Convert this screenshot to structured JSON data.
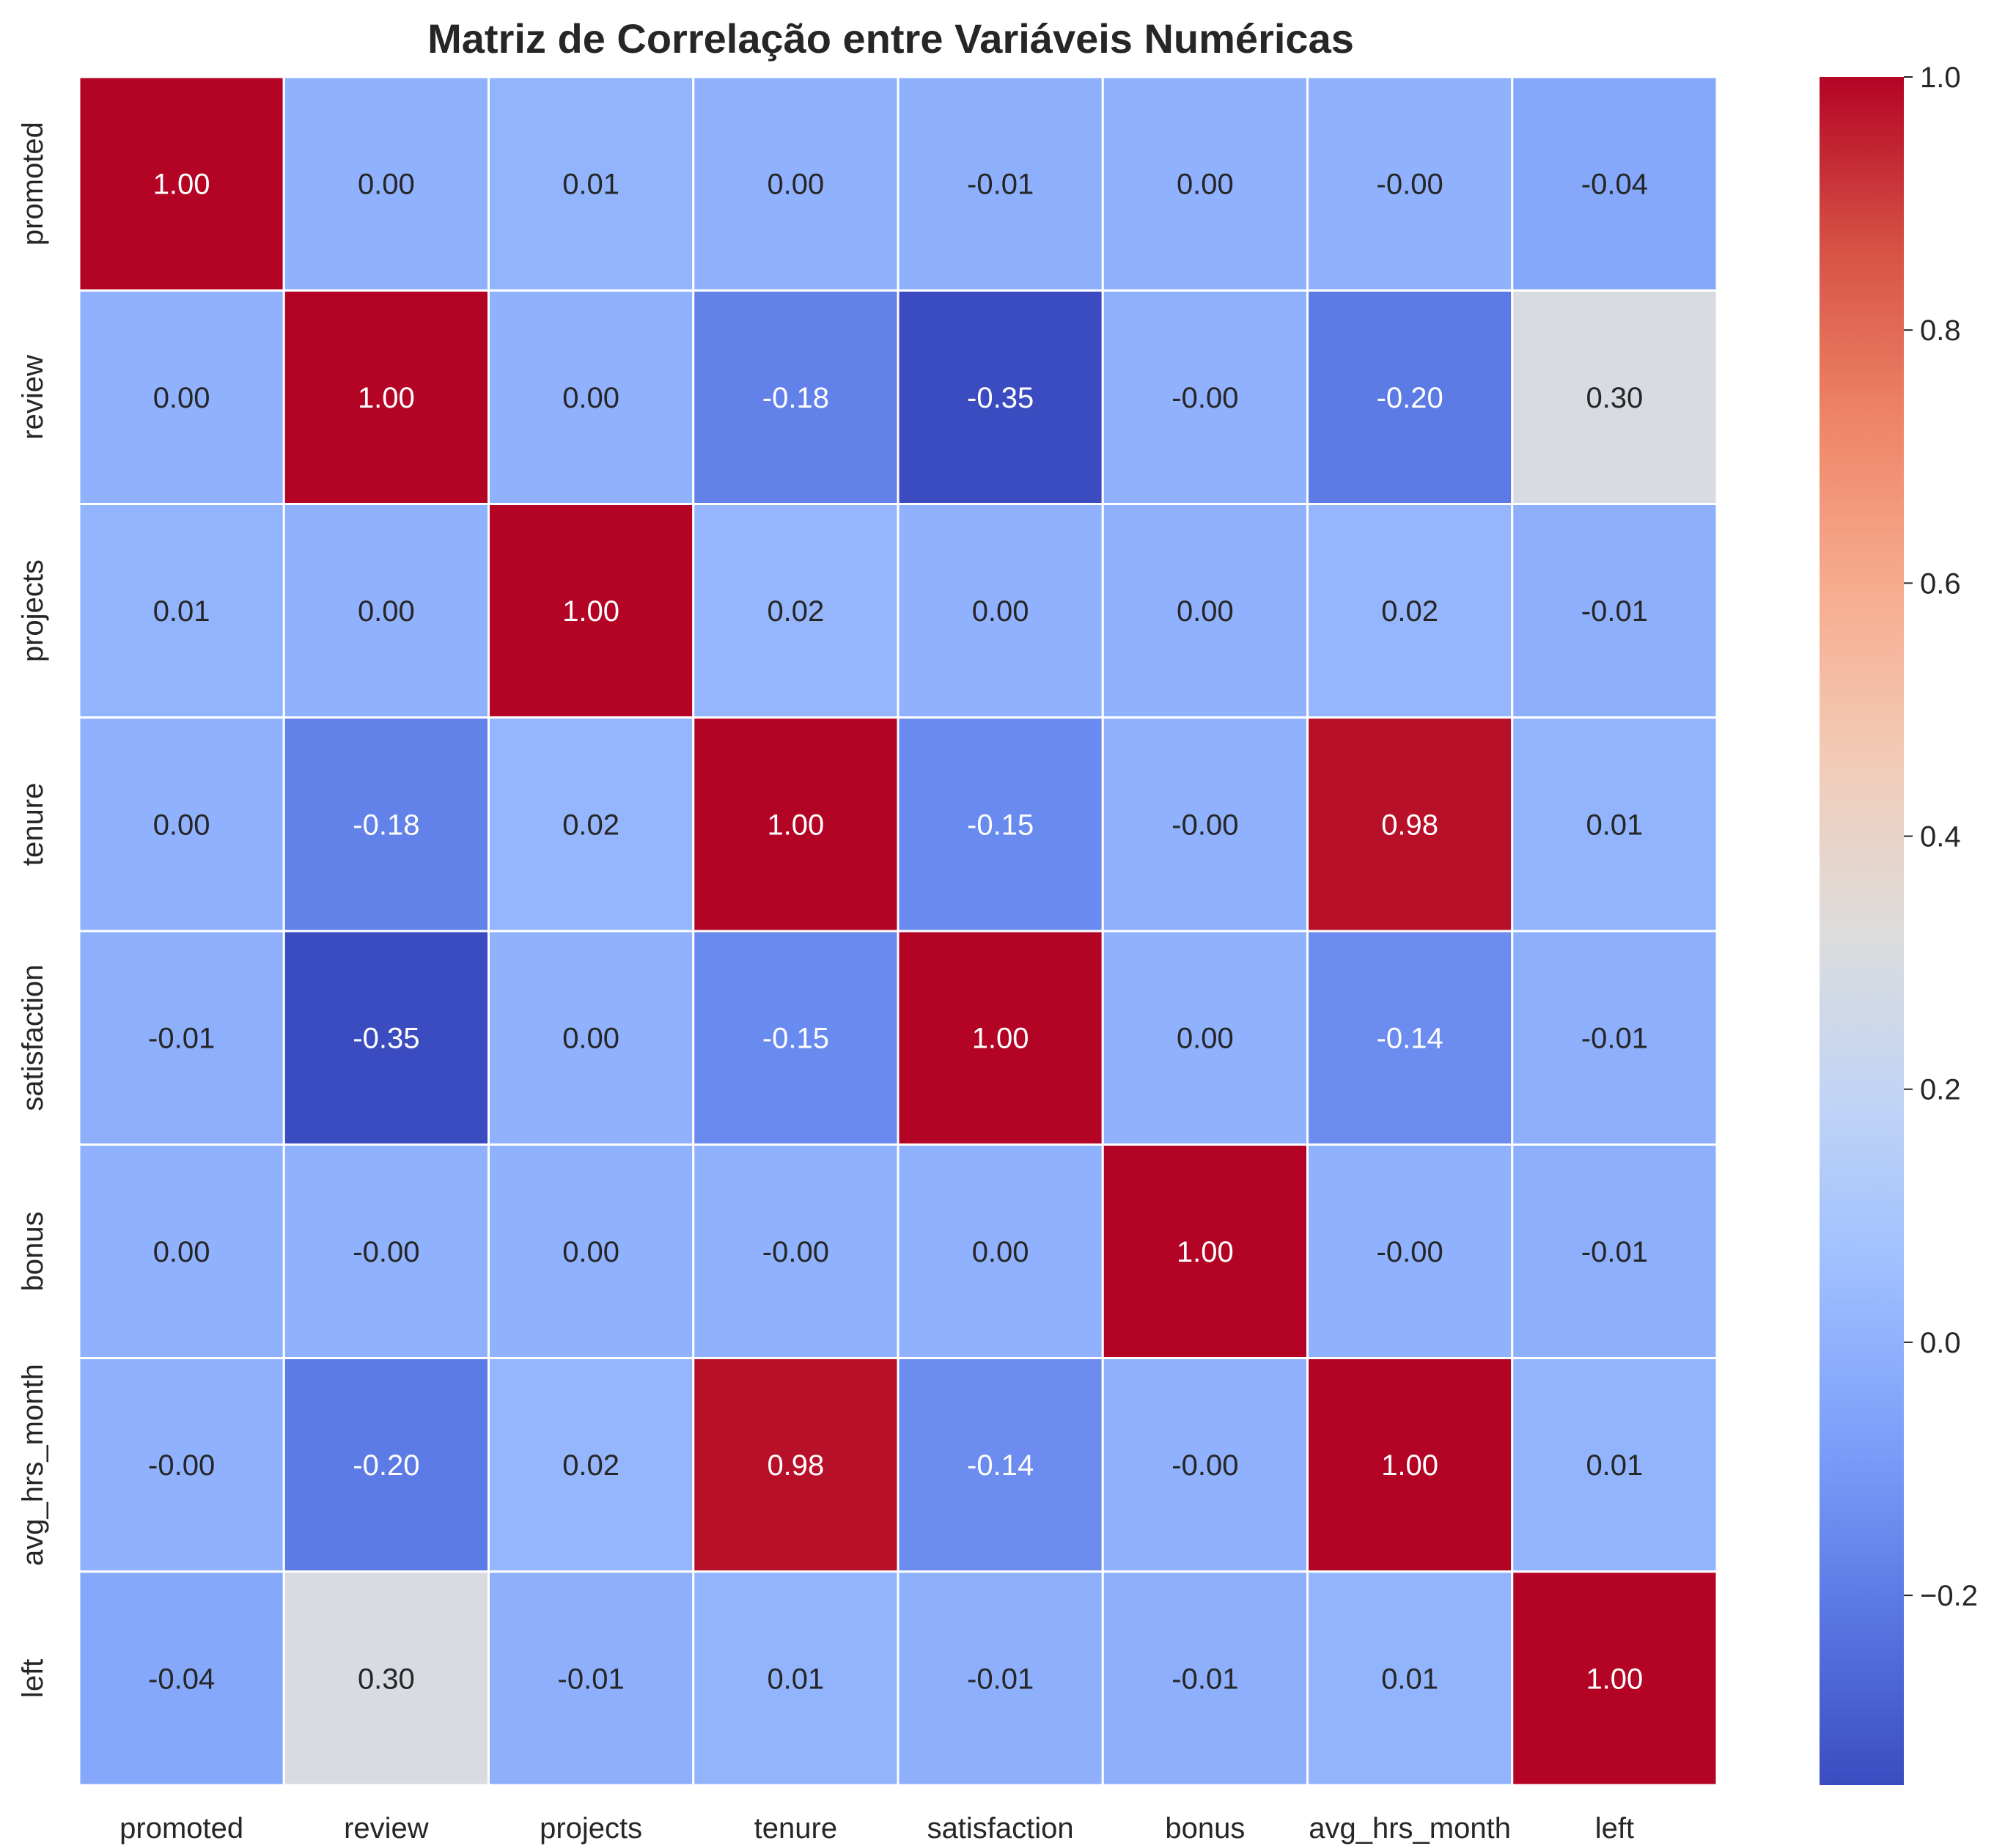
{
  "chart_data": {
    "type": "heatmap",
    "title": "Matriz de Correlação entre Variáveis Numéricas",
    "xlabel": "",
    "ylabel": "",
    "variables": [
      "promoted",
      "review",
      "projects",
      "tenure",
      "satisfaction",
      "bonus",
      "avg_hrs_month",
      "left"
    ],
    "labels": [
      [
        "1.00",
        "0.00",
        "0.01",
        "0.00",
        "-0.01",
        "0.00",
        "-0.00",
        "-0.04"
      ],
      [
        "0.00",
        "1.00",
        "0.00",
        "-0.18",
        "-0.35",
        "-0.00",
        "-0.20",
        "0.30"
      ],
      [
        "0.01",
        "0.00",
        "1.00",
        "0.02",
        "0.00",
        "0.00",
        "0.02",
        "-0.01"
      ],
      [
        "0.00",
        "-0.18",
        "0.02",
        "1.00",
        "-0.15",
        "-0.00",
        "0.98",
        "0.01"
      ],
      [
        "-0.01",
        "-0.35",
        "0.00",
        "-0.15",
        "1.00",
        "0.00",
        "-0.14",
        "-0.01"
      ],
      [
        "0.00",
        "-0.00",
        "0.00",
        "-0.00",
        "0.00",
        "1.00",
        "-0.00",
        "-0.01"
      ],
      [
        "-0.00",
        "-0.20",
        "0.02",
        "0.98",
        "-0.14",
        "-0.00",
        "1.00",
        "0.01"
      ],
      [
        "-0.04",
        "0.30",
        "-0.01",
        "0.01",
        "-0.01",
        "-0.01",
        "0.01",
        "1.00"
      ]
    ],
    "colormap": "coolwarm",
    "vmin": -0.35,
    "vmax": 1.0,
    "colorbar_ticks": [
      {
        "value": 1.0,
        "label": "1.0"
      },
      {
        "value": 0.8,
        "label": "0.8"
      },
      {
        "value": 0.6,
        "label": "0.6"
      },
      {
        "value": 0.4,
        "label": "0.4"
      },
      {
        "value": 0.2,
        "label": "0.2"
      },
      {
        "value": 0.0,
        "label": "0.0"
      },
      {
        "value": -0.2,
        "label": "−0.2"
      }
    ],
    "colorbar_colors": [
      "#3b4cc0",
      "#5977e3",
      "#7b9ff9",
      "#9ebeff",
      "#c0d4f5",
      "#dddcdc",
      "#f2cbb7",
      "#f7ac8e",
      "#ee8468",
      "#d65244",
      "#b40426"
    ],
    "cell_border_color": "#ffffff",
    "grid": false,
    "legend": "colorbar-right"
  }
}
